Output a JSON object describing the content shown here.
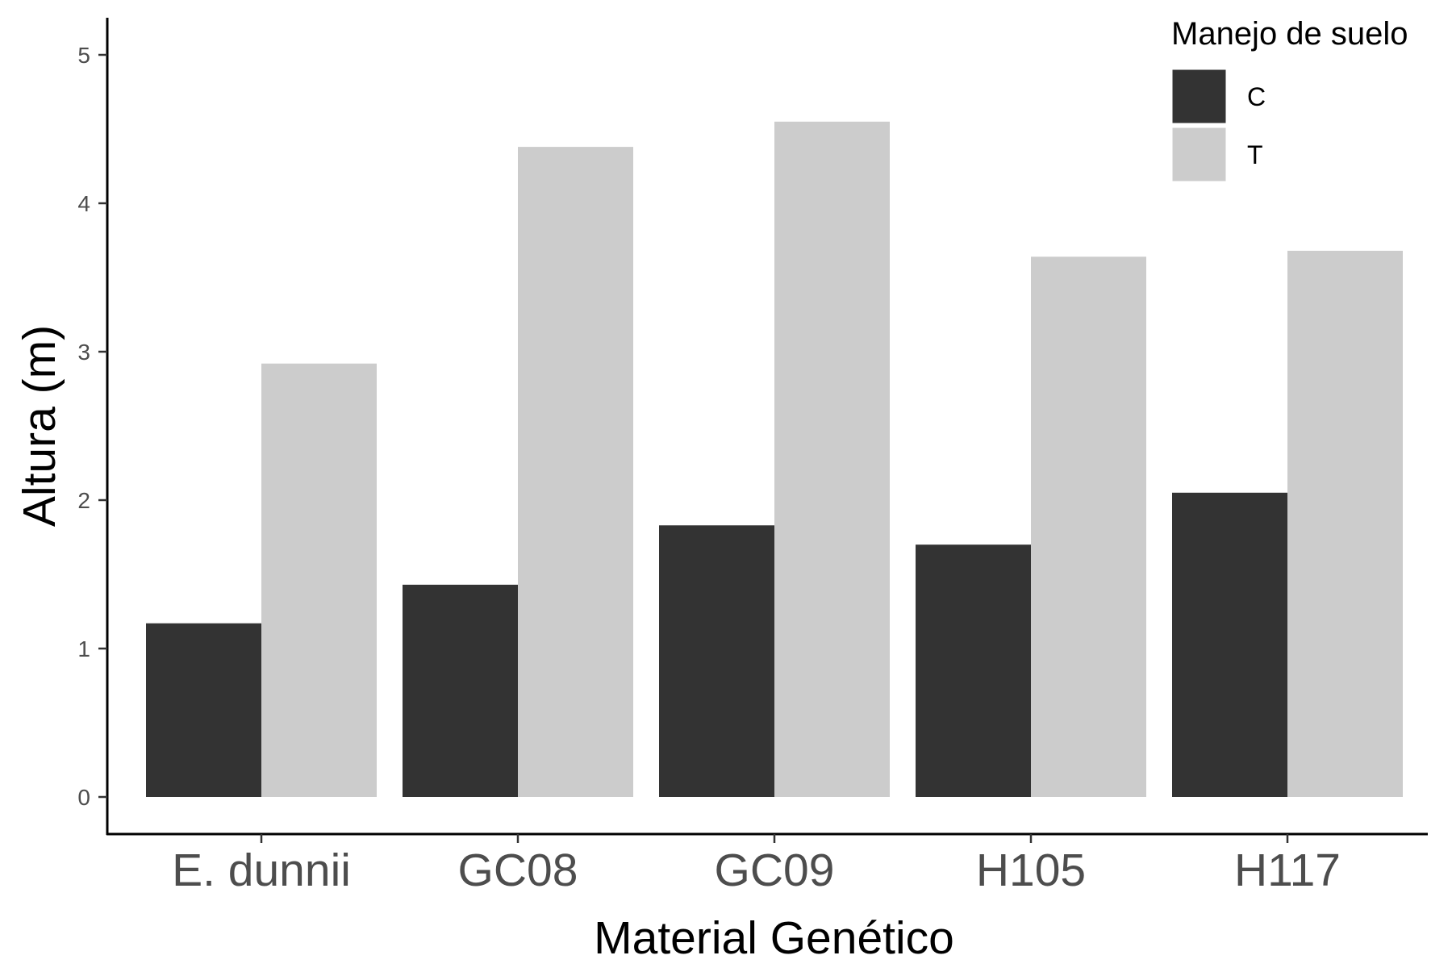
{
  "chart_data": {
    "type": "bar",
    "title": "",
    "xlabel": "Material Genético",
    "ylabel": "Altura (m)",
    "categories": [
      "E. dunnii",
      "GC08",
      "GC09",
      "H105",
      "H117"
    ],
    "series": [
      {
        "name": "C",
        "values": [
          1.17,
          1.43,
          1.83,
          1.7,
          2.05
        ],
        "color": "#333333"
      },
      {
        "name": "T",
        "values": [
          2.92,
          4.38,
          4.55,
          3.64,
          3.68
        ],
        "color": "#cccccc"
      }
    ],
    "ylim": [
      0,
      5.25
    ],
    "yticks": [
      0,
      1,
      2,
      3,
      4,
      5
    ],
    "grid": false,
    "legend": {
      "title": "Manejo de suelo",
      "position": "top-right"
    }
  }
}
